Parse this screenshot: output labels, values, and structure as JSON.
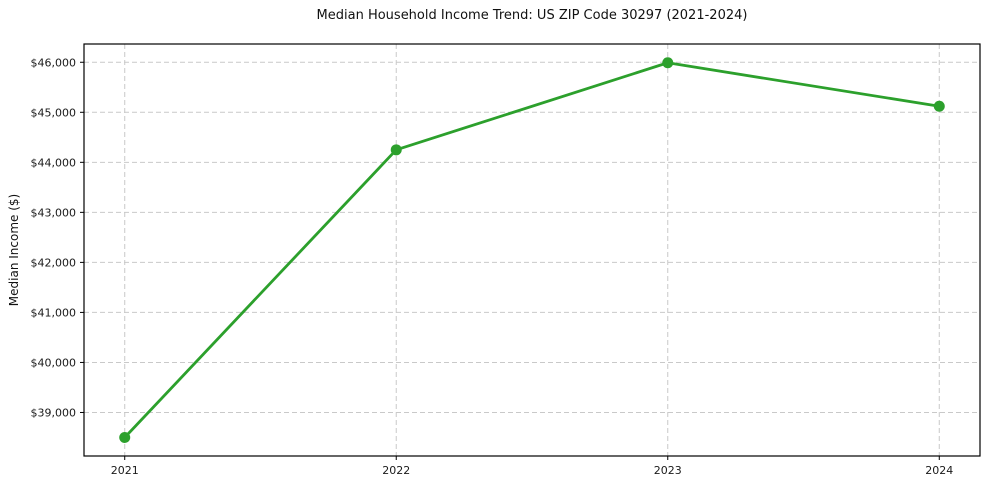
{
  "chart_data": {
    "type": "line",
    "title": "Median Household Income Trend: US ZIP Code 30297 (2021-2024)",
    "ylabel": "Median Income ($)",
    "xlabel": "",
    "categories": [
      2021,
      2022,
      2023,
      2024
    ],
    "x_tick_labels": [
      "2021",
      "2022",
      "2023",
      "2024"
    ],
    "series": [
      {
        "name": "Median Household Income",
        "values": [
          38500,
          44250,
          45990,
          45120
        ]
      }
    ],
    "y_ticks": [
      39000,
      40000,
      41000,
      42000,
      43000,
      44000,
      45000,
      46000
    ],
    "y_tick_labels": [
      "$39,000",
      "$40,000",
      "$41,000",
      "$42,000",
      "$43,000",
      "$44,000",
      "$45,000",
      "$46,000"
    ],
    "xlim": [
      2020.85,
      2024.15
    ],
    "ylim": [
      38130,
      46365
    ],
    "grid": true,
    "grid_style": "dashed",
    "legend": false,
    "colors": {
      "line": "#2ca02c",
      "marker": "#2ca02c",
      "grid": "#c9c9c9",
      "spine": "#000000",
      "background": "#ffffff",
      "text": "#1a1a1a"
    },
    "marker": "circle",
    "marker_radius": 5.5
  }
}
